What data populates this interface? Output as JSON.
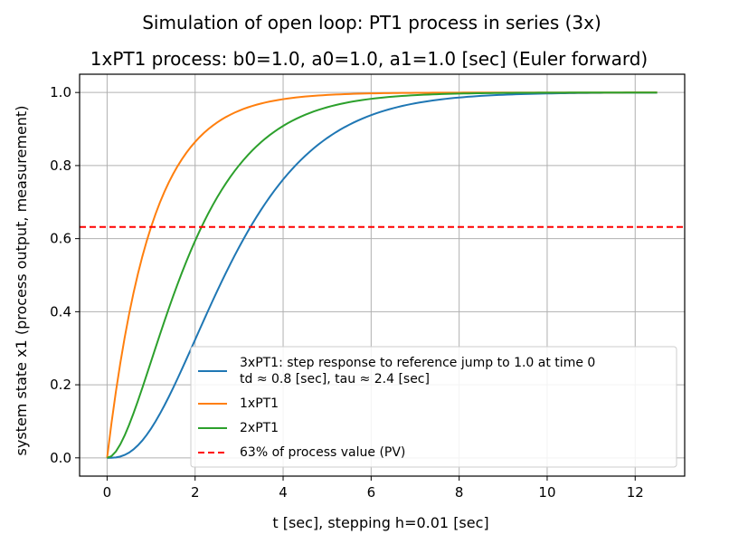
{
  "chart_data": {
    "type": "line",
    "suptitle": "Simulation of open loop: PT1 process in series (3x)",
    "title": "1xPT1 process: b0=1.0, a0=1.0, a1=1.0 [sec] (Euler forward)",
    "xlabel": "t [sec], stepping h=0.01 [sec]",
    "ylabel": "system state x1 (process output, measurement)",
    "xlim": [
      -0.625,
      13.125
    ],
    "ylim": [
      -0.05,
      1.05
    ],
    "xticks": [
      0,
      2,
      4,
      6,
      8,
      10,
      12
    ],
    "yticks": [
      0.0,
      0.2,
      0.4,
      0.6,
      0.8,
      1.0
    ],
    "xtick_labels": [
      "0",
      "2",
      "4",
      "6",
      "8",
      "10",
      "12"
    ],
    "ytick_labels": [
      "0.0",
      "0.2",
      "0.4",
      "0.6",
      "0.8",
      "1.0"
    ],
    "grid": true,
    "legend_position": "lower-right",
    "t_end": 12.5,
    "sample_step": 0.1,
    "series": [
      {
        "name": "3xPT1: step response to reference jump to 1.0 at time 0\ntd ≈ 0.8 [sec], tau ≈ 2.4 [sec]",
        "legend_lines": [
          "3xPT1: step response to reference jump to 1.0 at time 0",
          "td ≈ 0.8 [sec], tau ≈ 2.4 [sec]"
        ],
        "order": 3,
        "color": "#1f77b4",
        "style": "solid"
      },
      {
        "name": "1xPT1",
        "legend_lines": [
          "1xPT1"
        ],
        "order": 1,
        "color": "#ff7f0e",
        "style": "solid"
      },
      {
        "name": "2xPT1",
        "legend_lines": [
          "2xPT1"
        ],
        "order": 2,
        "color": "#2ca02c",
        "style": "solid"
      },
      {
        "name": "63% of process value (PV)",
        "legend_lines": [
          "63% of process value (PV)"
        ],
        "hline": 0.632,
        "color": "#ff0000",
        "style": "dashed"
      }
    ]
  }
}
